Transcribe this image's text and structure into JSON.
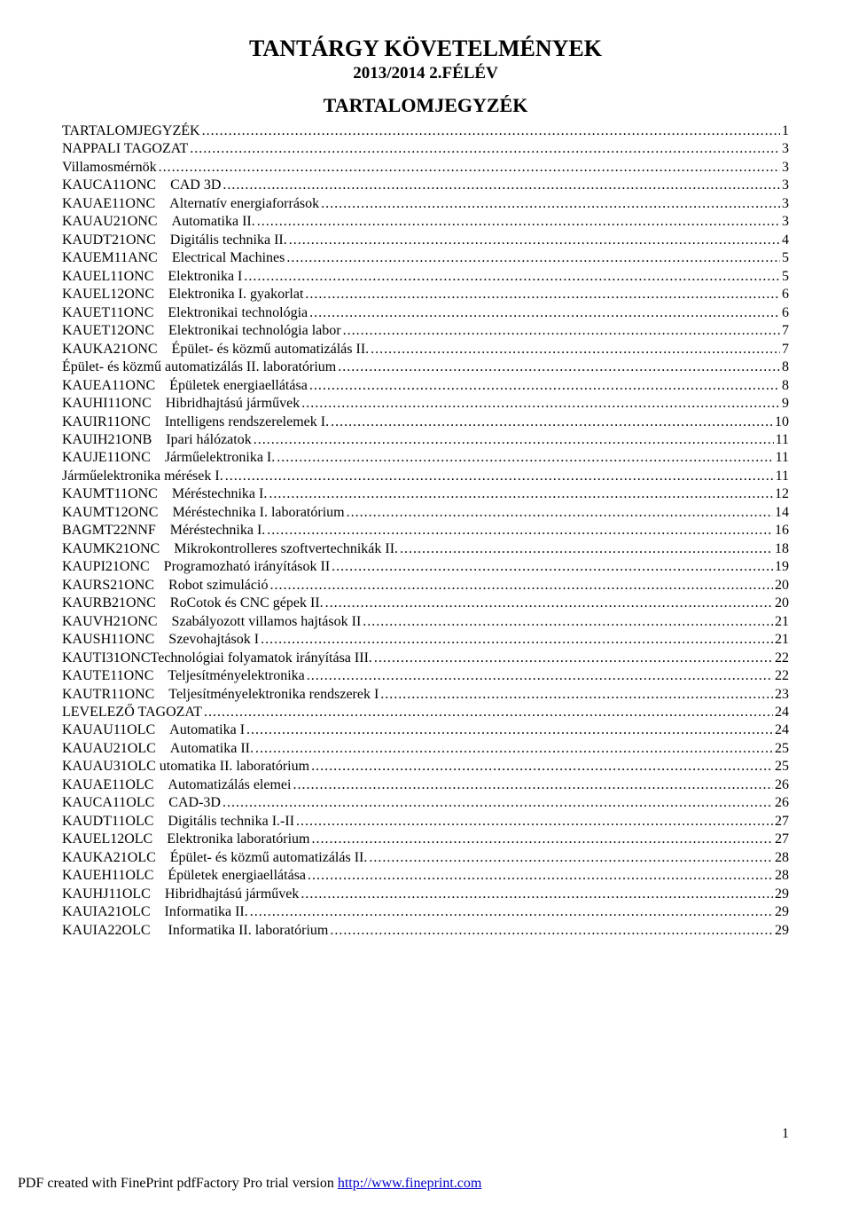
{
  "title": "TANTÁRGY KÖVETELMÉNYEK",
  "subtitle": "2013/2014 2.FÉLÉV",
  "toc_heading": "TARTALOMJEGYZÉK",
  "page_number": "1",
  "footer_prefix": "PDF created with FinePrint pdfFactory Pro trial version ",
  "footer_link": "http://www.fineprint.com",
  "toc": [
    {
      "label": "TARTALOMJEGYZÉK",
      "page": "1"
    },
    {
      "label": "NAPPALI TAGOZAT",
      "page": "3"
    },
    {
      "label": "Villamosmérnök",
      "page": "3"
    },
    {
      "label": "KAUCA11ONC CAD 3D",
      "page": "3"
    },
    {
      "label": "KAUAE11ONC Alternatív energiaforrások",
      "page": "3"
    },
    {
      "label": "KAUAU21ONC Automatika II.",
      "page": "3"
    },
    {
      "label": "KAUDT21ONC Digitális technika II.",
      "page": "4"
    },
    {
      "label": "KAUEM11ANC Electrical Machines",
      "page": "5"
    },
    {
      "label": "KAUEL11ONC Elektronika I",
      "page": "5"
    },
    {
      "label": "KAUEL12ONC Elektronika I. gyakorlat",
      "page": "6"
    },
    {
      "label": "KAUET11ONC Elektronikai technológia",
      "page": "6"
    },
    {
      "label": "KAUET12ONC Elektronikai technológia labor",
      "page": "7"
    },
    {
      "label": "KAUKA21ONC Épület- és közmű automatizálás II.",
      "page": "7"
    },
    {
      "label": "Épület- és közmű automatizálás II. laboratórium",
      "page": "8"
    },
    {
      "label": "KAUEA11ONC Épületek energiaellátása",
      "page": "8"
    },
    {
      "label": "KAUHI11ONC Hibridhajtású járművek",
      "page": "9"
    },
    {
      "label": "KAUIR11ONC Intelligens rendszerelemek I.",
      "page": "10"
    },
    {
      "label": "KAUIH21ONB Ipari hálózatok",
      "page": "11"
    },
    {
      "label": "KAUJE11ONC Járműelektronika I.",
      "page": "11"
    },
    {
      "label": "Járműelektronika mérések I.",
      "page": "11"
    },
    {
      "label": "KAUMT11ONC Méréstechnika I.",
      "page": "12"
    },
    {
      "label": "KAUMT12ONC Méréstechnika I. laboratórium",
      "page": "14"
    },
    {
      "label": "BAGMT22NNF Méréstechnika I.",
      "page": "16"
    },
    {
      "label": "KAUMK21ONC Mikrokontrolleres szoftvertechnikák II.",
      "page": "18"
    },
    {
      "label": "KAUPI21ONC Programozható irányítások II",
      "page": "19"
    },
    {
      "label": "KAURS21ONC Robot szimuláció",
      "page": "20"
    },
    {
      "label": "KAURB21ONC RoCotok és CNC gépek II.",
      "page": "20"
    },
    {
      "label": "KAUVH21ONC Szabályozott villamos hajtások II",
      "page": "21"
    },
    {
      "label": "KAUSH11ONC Szevohajtások I",
      "page": "21"
    },
    {
      "label": "KAUTI31ONCTechnológiai folyamatok irányítása III.",
      "page": "22"
    },
    {
      "label": "KAUTE11ONC Teljesítményelektronika",
      "page": "22"
    },
    {
      "label": "KAUTR11ONC Teljesítményelektronika rendszerek I",
      "page": "23"
    },
    {
      "label": "LEVELEZŐ TAGOZAT",
      "page": "24"
    },
    {
      "label": "KAUAU11OLC Automatika I",
      "page": "24"
    },
    {
      "label": "KAUAU21OLC Automatika II.",
      "page": "25"
    },
    {
      "label": "KAUAU31OLC utomatika II. laboratórium",
      "page": "25"
    },
    {
      "label": "KAUAE11OLC Automatizálás elemei",
      "page": "26"
    },
    {
      "label": "KAUCA11OLC CAD-3D",
      "page": "26"
    },
    {
      "label": "KAUDT11OLC Digitális technika I.-II",
      "page": "27"
    },
    {
      "label": "KAUEL12OLC Elektronika laboratórium",
      "page": "27"
    },
    {
      "label": "KAUKA21OLC Épület- és közmű automatizálás II.",
      "page": "28"
    },
    {
      "label": "KAUEH11OLC Épületek energiaellátása",
      "page": "28"
    },
    {
      "label": "KAUHJ11OLC Hibridhajtású járművek",
      "page": "29"
    },
    {
      "label": "KAUIA21OLC Informatika II.",
      "page": "29"
    },
    {
      "label": "KAUIA22OLC  Informatika II. laboratórium",
      "page": "29"
    }
  ]
}
